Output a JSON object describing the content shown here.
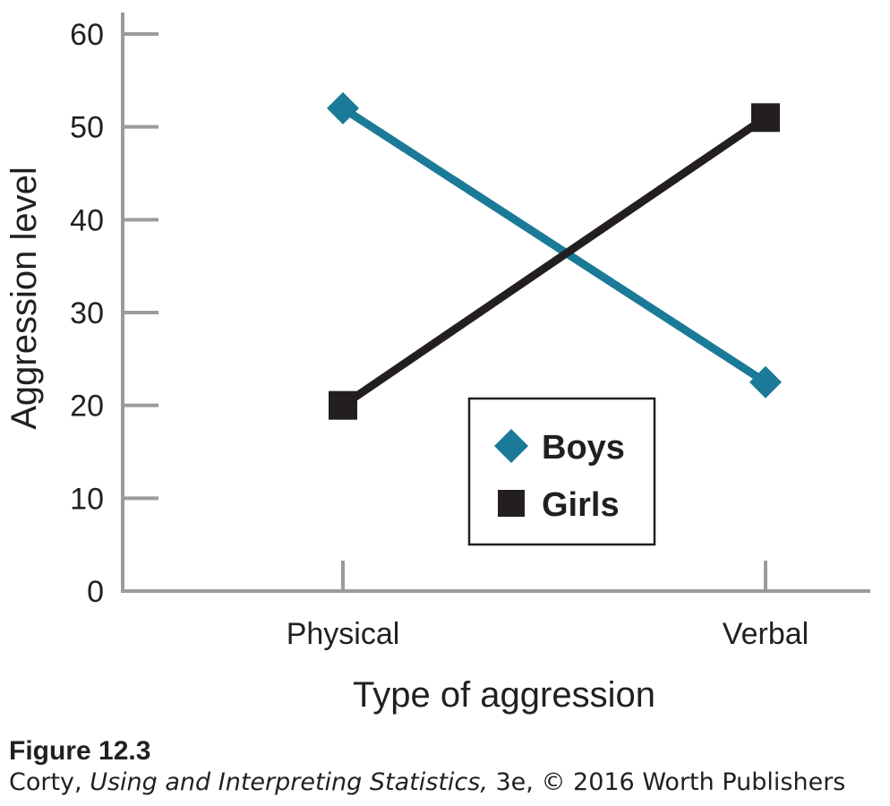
{
  "chart_data": {
    "type": "line",
    "categories": [
      "Physical",
      "Verbal"
    ],
    "series": [
      {
        "name": "Boys",
        "values": [
          52,
          22.5
        ],
        "color": "#1a7a98",
        "marker": "diamond"
      },
      {
        "name": "Girls",
        "values": [
          20,
          51
        ],
        "color": "#231f20",
        "marker": "square"
      }
    ],
    "xlabel": "Type of aggression",
    "ylabel": "Aggression level",
    "ylim": [
      0,
      60
    ],
    "yticks": [
      0,
      10,
      20,
      30,
      40,
      50,
      60
    ],
    "grid": false,
    "legend_position": "center-bottom",
    "axis_color": "#9b9b9b"
  },
  "caption": {
    "figure_number": "Figure 12.3",
    "credit_prefix": "Corty, ",
    "credit_title": "Using and Interpreting Statistics,",
    "credit_suffix": " 3e, © 2016 Worth Publishers"
  }
}
